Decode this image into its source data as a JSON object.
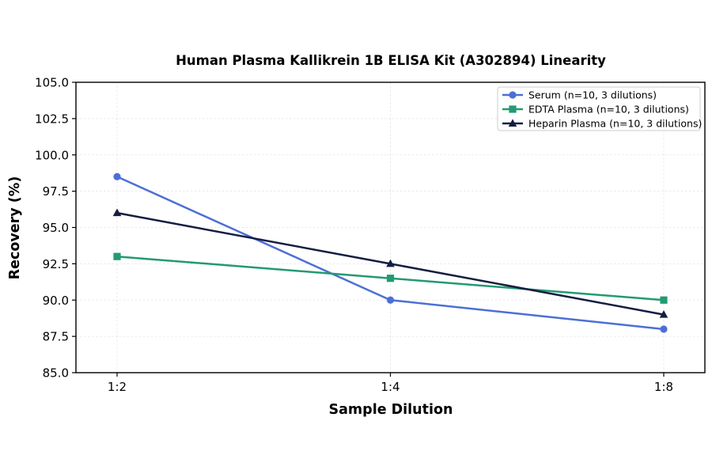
{
  "chart_data": {
    "type": "line",
    "title": "Human Plasma Kallikrein 1B ELISA Kit (A302894) Linearity",
    "xlabel": "Sample Dilution",
    "ylabel": "Recovery (%)",
    "categories": [
      "1:2",
      "1:4",
      "1:8"
    ],
    "ylim": [
      85.0,
      105.0
    ],
    "yticks": [
      "85.0",
      "87.5",
      "90.0",
      "92.5",
      "95.0",
      "97.5",
      "100.0",
      "102.5",
      "105.0"
    ],
    "grid": true,
    "legend_position": "top-right",
    "series": [
      {
        "name": "Serum (n=10, 3 dilutions)",
        "values": [
          98.5,
          90.0,
          88.0
        ],
        "color": "#4C6FD6",
        "marker": "circle"
      },
      {
        "name": "EDTA Plasma (n=10, 3 dilutions)",
        "values": [
          93.0,
          91.5,
          90.0
        ],
        "color": "#229A72",
        "marker": "square"
      },
      {
        "name": "Heparin Plasma (n=10, 3 dilutions)",
        "values": [
          96.0,
          92.5,
          89.0
        ],
        "color": "#141E42",
        "marker": "triangle"
      }
    ]
  }
}
